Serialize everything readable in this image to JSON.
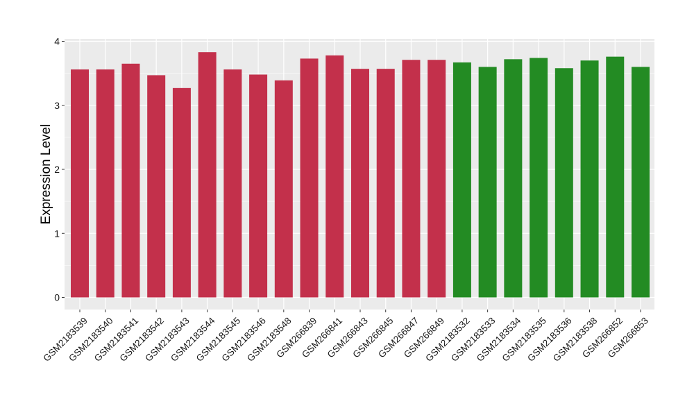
{
  "chart_data": {
    "type": "bar",
    "title": "",
    "xlabel": "",
    "ylabel": "Expression Level",
    "ylim": [
      0,
      4
    ],
    "yticks": [
      0,
      1,
      2,
      3,
      4
    ],
    "grid": true,
    "legend": "none",
    "categories": [
      "GSM2183539",
      "GSM2183540",
      "GSM2183541",
      "GSM2183542",
      "GSM2183543",
      "GSM2183544",
      "GSM2183545",
      "GSM2183546",
      "GSM2183548",
      "GSM266839",
      "GSM266841",
      "GSM266843",
      "GSM266845",
      "GSM266847",
      "GSM266849",
      "GSM2183532",
      "GSM2183533",
      "GSM2183534",
      "GSM2183535",
      "GSM2183536",
      "GSM2183538",
      "GSM266852",
      "GSM266853"
    ],
    "values": [
      3.56,
      3.56,
      3.65,
      3.47,
      3.27,
      3.83,
      3.56,
      3.48,
      3.39,
      3.73,
      3.78,
      3.57,
      3.57,
      3.71,
      3.71,
      3.67,
      3.6,
      3.72,
      3.74,
      3.58,
      3.7,
      3.76,
      3.6
    ],
    "groups": [
      "red",
      "red",
      "red",
      "red",
      "red",
      "red",
      "red",
      "red",
      "red",
      "red",
      "red",
      "red",
      "red",
      "red",
      "red",
      "green",
      "green",
      "green",
      "green",
      "green",
      "green",
      "green",
      "green"
    ],
    "colors": {
      "red": "#C3304B",
      "green": "#238B23",
      "panel_background": "#EBEBEB",
      "grid": "#FFFFFF"
    }
  }
}
